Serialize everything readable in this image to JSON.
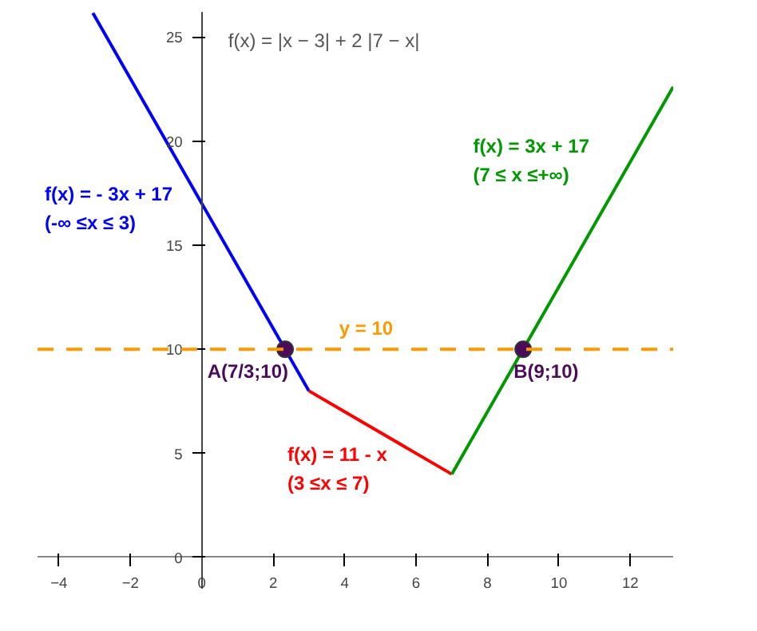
{
  "chart_data": {
    "type": "line",
    "title": "f(x)  =  |x − 3| + 2  |7 − x|",
    "xlim": [
      -4.6,
      13.2
    ],
    "ylim": [
      -1.5,
      26.2
    ],
    "xticks": [
      -4,
      -2,
      0,
      2,
      4,
      6,
      8,
      10,
      12
    ],
    "yticks": [
      0,
      5,
      10,
      15,
      20,
      25
    ],
    "series": [
      {
        "name": "f(x) = - 3x + 17\n(-∞ ≤x ≤ 3)",
        "color": "#0000ff",
        "x": [
          -3.05,
          3
        ],
        "values": [
          26.15,
          8
        ]
      },
      {
        "name": "f(x) = 11 - x\n(3 ≤x ≤ 7)",
        "color": "#ff0000",
        "x": [
          3,
          7
        ],
        "values": [
          8,
          4
        ]
      },
      {
        "name": "f(x) = 3x + 17\n(7 ≤ x ≤+∞)",
        "color": "#009900",
        "x": [
          7,
          13.2
        ],
        "values": [
          4,
          22.6
        ]
      },
      {
        "type": "scatter",
        "marker": "circle",
        "color": "#4b0a5a",
        "x": [
          2.333,
          9
        ],
        "values": [
          10,
          10
        ]
      }
    ],
    "ref_lines": [
      {
        "axis": "y",
        "value": 10,
        "label": "y = 10",
        "color": "#ff9900",
        "line_style": "dashed"
      }
    ],
    "annotations": [
      {
        "text": "A(7/3;10)",
        "x": 2.333,
        "y": 10
      },
      {
        "text": "B(9;10)",
        "x": 9,
        "y": 10
      }
    ],
    "grid": false,
    "marker": "none",
    "line_style": "solid"
  }
}
